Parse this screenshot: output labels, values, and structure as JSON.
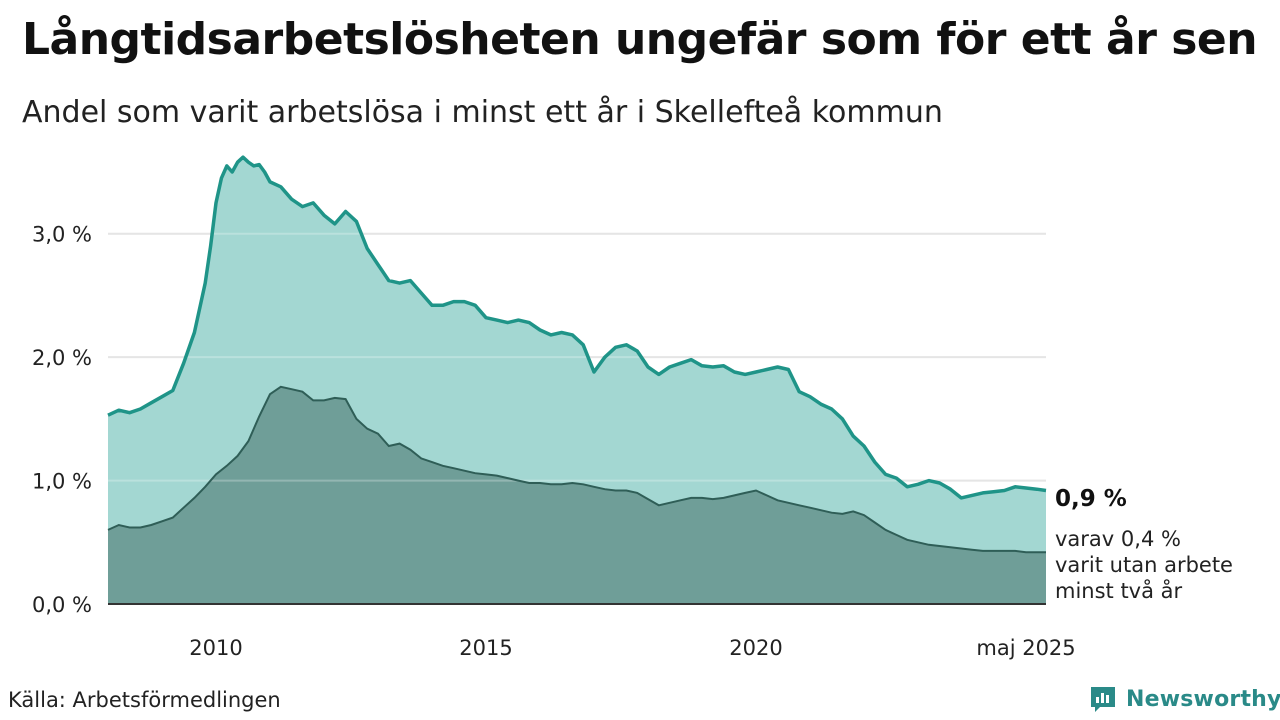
{
  "header": {
    "title": "Långtidsarbetslösheten ungefär som för ett år sen",
    "subtitle": "Andel som varit arbetslösa i minst ett år i Skellefteå kommun"
  },
  "footer": {
    "source": "Källa: Arbetsförmedlingen",
    "brand": "Newsworthy"
  },
  "colors": {
    "series1_line": "#1f9488",
    "series1_fill": "#a3d7d2",
    "series2_line": "#2f5e57",
    "series2_fill": "#6f9e98",
    "grid": "#dddddd",
    "axis": "#333333",
    "brand": "#2a8a88"
  },
  "chart_data": {
    "type": "area",
    "x_unit": "year",
    "xlim": [
      2008.0,
      2025.37
    ],
    "ylim": [
      0,
      3.8
    ],
    "y_ticks": [
      {
        "value": 0,
        "label": "0,0 %"
      },
      {
        "value": 1,
        "label": "1,0 %"
      },
      {
        "value": 2,
        "label": "2,0 %"
      },
      {
        "value": 3,
        "label": "3,0 %"
      }
    ],
    "x_ticks": [
      {
        "value": 2010,
        "label": "2010"
      },
      {
        "value": 2015,
        "label": "2015"
      },
      {
        "value": 2020,
        "label": "2020"
      },
      {
        "value": 2025,
        "label": "maj 2025"
      }
    ],
    "grid": true,
    "series": [
      {
        "id": "minst-ett-ar",
        "end_label": "0,9 %",
        "x": [
          2008.0,
          2008.2,
          2008.4,
          2008.6,
          2008.8,
          2009.0,
          2009.2,
          2009.4,
          2009.6,
          2009.8,
          2009.9,
          2010.0,
          2010.1,
          2010.2,
          2010.3,
          2010.4,
          2010.5,
          2010.6,
          2010.7,
          2010.8,
          2010.9,
          2011.0,
          2011.2,
          2011.4,
          2011.6,
          2011.8,
          2012.0,
          2012.2,
          2012.4,
          2012.6,
          2012.8,
          2013.0,
          2013.2,
          2013.4,
          2013.6,
          2013.8,
          2014.0,
          2014.2,
          2014.4,
          2014.6,
          2014.8,
          2015.0,
          2015.2,
          2015.4,
          2015.6,
          2015.8,
          2016.0,
          2016.2,
          2016.4,
          2016.6,
          2016.8,
          2017.0,
          2017.2,
          2017.4,
          2017.6,
          2017.8,
          2018.0,
          2018.2,
          2018.4,
          2018.6,
          2018.8,
          2019.0,
          2019.2,
          2019.4,
          2019.6,
          2019.8,
          2020.0,
          2020.2,
          2020.4,
          2020.6,
          2020.8,
          2021.0,
          2021.2,
          2021.4,
          2021.6,
          2021.8,
          2022.0,
          2022.2,
          2022.4,
          2022.6,
          2022.8,
          2023.0,
          2023.2,
          2023.4,
          2023.6,
          2023.8,
          2024.0,
          2024.2,
          2024.4,
          2024.6,
          2024.8,
          2025.0,
          2025.2,
          2025.37
        ],
        "y": [
          1.53,
          1.57,
          1.55,
          1.58,
          1.63,
          1.68,
          1.73,
          1.95,
          2.2,
          2.6,
          2.9,
          3.25,
          3.45,
          3.55,
          3.5,
          3.58,
          3.62,
          3.58,
          3.55,
          3.56,
          3.5,
          3.42,
          3.38,
          3.28,
          3.22,
          3.25,
          3.15,
          3.08,
          3.18,
          3.1,
          2.88,
          2.75,
          2.62,
          2.6,
          2.62,
          2.52,
          2.42,
          2.42,
          2.45,
          2.45,
          2.42,
          2.32,
          2.3,
          2.28,
          2.3,
          2.28,
          2.22,
          2.18,
          2.2,
          2.18,
          2.1,
          1.88,
          2.0,
          2.08,
          2.1,
          2.05,
          1.92,
          1.86,
          1.92,
          1.95,
          1.98,
          1.93,
          1.92,
          1.93,
          1.88,
          1.86,
          1.88,
          1.9,
          1.92,
          1.9,
          1.72,
          1.68,
          1.62,
          1.58,
          1.5,
          1.36,
          1.28,
          1.15,
          1.05,
          1.02,
          0.95,
          0.97,
          1.0,
          0.98,
          0.93,
          0.86,
          0.88,
          0.9,
          0.91,
          0.92,
          0.95,
          0.94,
          0.93,
          0.92
        ]
      },
      {
        "id": "minst-tva-ar",
        "end_label": "varav 0,4 % varit utan arbete minst två år",
        "end_label_lines": [
          "varav 0,4 %",
          "varit utan arbete",
          "minst två år"
        ],
        "x": [
          2008.0,
          2008.2,
          2008.4,
          2008.6,
          2008.8,
          2009.0,
          2009.2,
          2009.4,
          2009.6,
          2009.8,
          2010.0,
          2010.2,
          2010.4,
          2010.6,
          2010.8,
          2011.0,
          2011.2,
          2011.4,
          2011.6,
          2011.8,
          2012.0,
          2012.2,
          2012.4,
          2012.6,
          2012.8,
          2013.0,
          2013.2,
          2013.4,
          2013.6,
          2013.8,
          2014.0,
          2014.2,
          2014.4,
          2014.6,
          2014.8,
          2015.0,
          2015.2,
          2015.4,
          2015.6,
          2015.8,
          2016.0,
          2016.2,
          2016.4,
          2016.6,
          2016.8,
          2017.0,
          2017.2,
          2017.4,
          2017.6,
          2017.8,
          2018.0,
          2018.2,
          2018.4,
          2018.6,
          2018.8,
          2019.0,
          2019.2,
          2019.4,
          2019.6,
          2019.8,
          2020.0,
          2020.2,
          2020.4,
          2020.6,
          2020.8,
          2021.0,
          2021.2,
          2021.4,
          2021.6,
          2021.8,
          2022.0,
          2022.2,
          2022.4,
          2022.6,
          2022.8,
          2023.0,
          2023.2,
          2023.4,
          2023.6,
          2023.8,
          2024.0,
          2024.2,
          2024.4,
          2024.6,
          2024.8,
          2025.0,
          2025.2,
          2025.37
        ],
        "y": [
          0.6,
          0.64,
          0.62,
          0.62,
          0.64,
          0.67,
          0.7,
          0.78,
          0.86,
          0.95,
          1.05,
          1.12,
          1.2,
          1.32,
          1.52,
          1.7,
          1.76,
          1.74,
          1.72,
          1.65,
          1.65,
          1.67,
          1.66,
          1.5,
          1.42,
          1.38,
          1.28,
          1.3,
          1.25,
          1.18,
          1.15,
          1.12,
          1.1,
          1.08,
          1.06,
          1.05,
          1.04,
          1.02,
          1.0,
          0.98,
          0.98,
          0.97,
          0.97,
          0.98,
          0.97,
          0.95,
          0.93,
          0.92,
          0.92,
          0.9,
          0.85,
          0.8,
          0.82,
          0.84,
          0.86,
          0.86,
          0.85,
          0.86,
          0.88,
          0.9,
          0.92,
          0.88,
          0.84,
          0.82,
          0.8,
          0.78,
          0.76,
          0.74,
          0.73,
          0.75,
          0.72,
          0.66,
          0.6,
          0.56,
          0.52,
          0.5,
          0.48,
          0.47,
          0.46,
          0.45,
          0.44,
          0.43,
          0.43,
          0.43,
          0.43,
          0.42,
          0.42,
          0.42
        ]
      }
    ]
  }
}
